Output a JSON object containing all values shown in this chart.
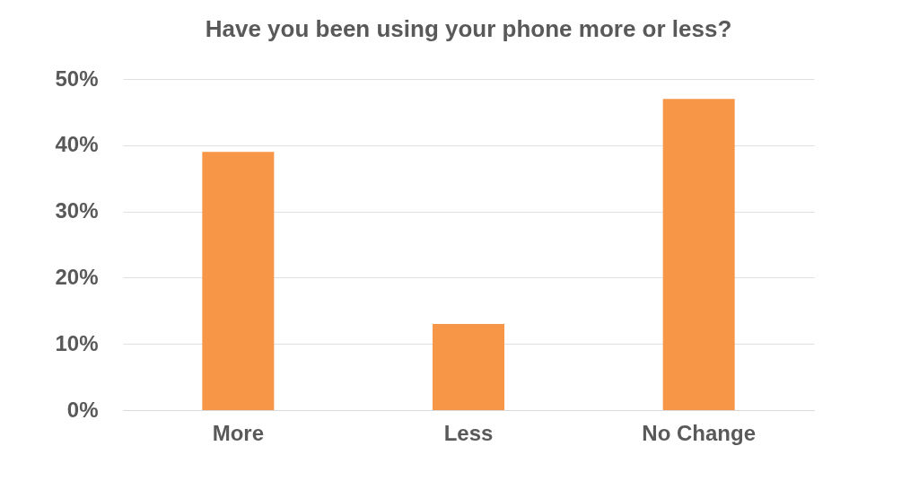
{
  "chart_data": {
    "type": "bar",
    "title": "Have you been using your phone more or less?",
    "categories": [
      "More",
      "Less",
      "No Change"
    ],
    "values": [
      39,
      13,
      47
    ],
    "color": "#f79646",
    "ylim": [
      0,
      50
    ],
    "yticks": [
      {
        "value": 0,
        "label": "0%"
      },
      {
        "value": 10,
        "label": "10%"
      },
      {
        "value": 20,
        "label": "20%"
      },
      {
        "value": 30,
        "label": "30%"
      },
      {
        "value": 40,
        "label": "40%"
      },
      {
        "value": 50,
        "label": "50%"
      }
    ],
    "grid": "y"
  }
}
